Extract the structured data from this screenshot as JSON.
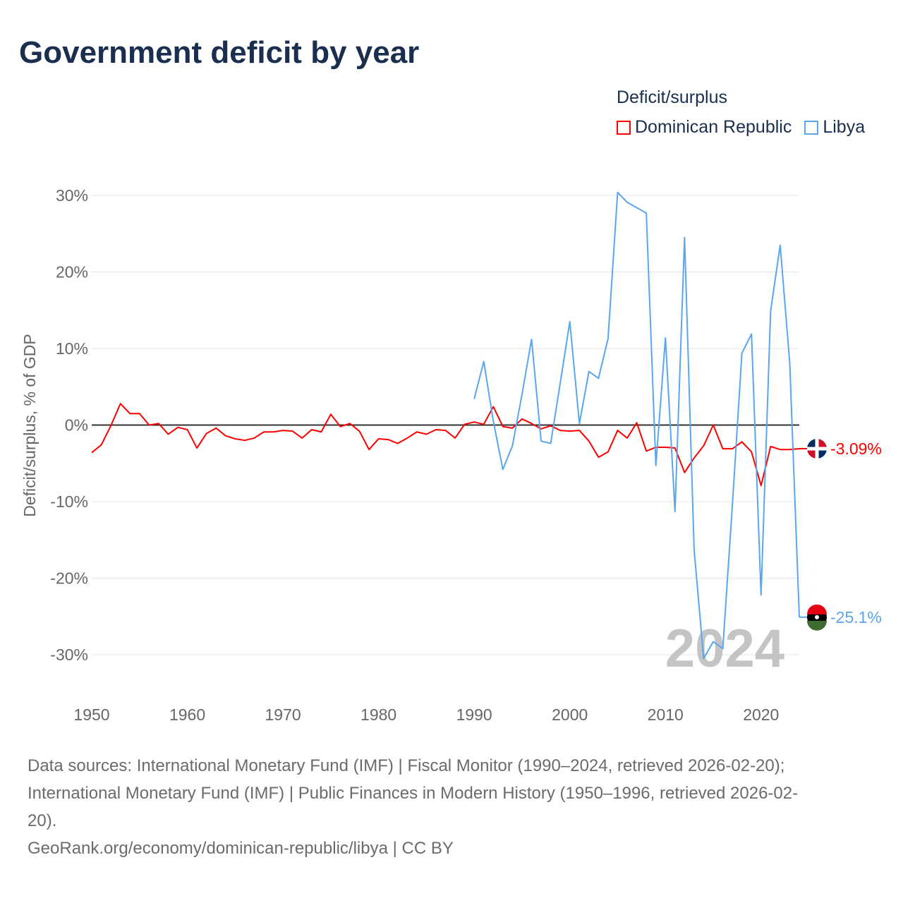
{
  "title": "Government deficit by year",
  "legend": {
    "title": "Deficit/surplus",
    "items": [
      {
        "name": "Dominican Republic",
        "color": "#ff0000"
      },
      {
        "name": "Libya",
        "color": "#5aa6ec"
      }
    ]
  },
  "year_label": "2024",
  "sources": {
    "line1": "Data sources: International Monetary Fund (IMF) | Fiscal Monitor (1990–2024, retrieved 2026-02-20);",
    "line2": "International Monetary Fund (IMF) | Public Finances in Modern History (1950–1996, retrieved 2026-02-",
    "line3": "20).",
    "line4": "GeoRank.org/economy/dominican-republic/libya | CC BY"
  },
  "chart_data": {
    "type": "line",
    "title": "Government deficit by year",
    "xlabel": "",
    "ylabel": "Deficit/surplus, % of GDP",
    "xlim": [
      1950,
      2024
    ],
    "ylim": [
      -30,
      30
    ],
    "xticks": [
      1950,
      1960,
      1970,
      1980,
      1990,
      2000,
      2010,
      2020
    ],
    "xtick_labels": [
      "1950",
      "1960",
      "1970",
      "1980",
      "1990",
      "2000",
      "2010",
      "2020"
    ],
    "yticks": [
      30,
      20,
      10,
      0,
      -10,
      -20,
      -30
    ],
    "ytick_labels": [
      "30%",
      "20%",
      "10%",
      "0%",
      "-10%",
      "-20%",
      "-30%"
    ],
    "grid": true,
    "legend_position": "top-right",
    "series": [
      {
        "name": "Dominican Republic",
        "color": "#ff0000",
        "start_year": 1950,
        "end_label": "-3.09%",
        "values": [
          -3.6,
          -2.6,
          -0.1,
          2.8,
          1.5,
          1.5,
          0.0,
          0.2,
          -1.2,
          -0.3,
          -0.6,
          -3.0,
          -1.1,
          -0.4,
          -1.4,
          -1.8,
          -2.0,
          -1.7,
          -0.9,
          -0.9,
          -0.7,
          -0.8,
          -1.7,
          -0.6,
          -0.9,
          1.4,
          -0.2,
          0.2,
          -0.8,
          -3.2,
          -1.8,
          -1.9,
          -2.4,
          -1.7,
          -0.9,
          -1.2,
          -0.6,
          -0.7,
          -1.7,
          0.1,
          0.4,
          0.1,
          2.4,
          -0.2,
          -0.4,
          0.8,
          0.2,
          -0.5,
          -0.1,
          -0.7,
          -0.8,
          -0.7,
          -2.1,
          -4.2,
          -3.5,
          -0.7,
          -1.7,
          0.3,
          -3.4,
          -2.9,
          -2.9,
          -3.0,
          -6.2,
          -4.3,
          -2.7,
          0.0,
          -3.1,
          -3.1,
          -2.2,
          -3.5,
          -7.9,
          -2.8,
          -3.2,
          -3.2,
          -3.09
        ]
      },
      {
        "name": "Libya",
        "color": "#5aa6ec",
        "start_year": 1990,
        "end_label": "-25.1%",
        "values": [
          3.4,
          8.3,
          0.5,
          -5.8,
          -2.7,
          4.0,
          11.2,
          -2.1,
          -2.4,
          5.5,
          13.5,
          0.2,
          7.0,
          6.1,
          11.3,
          30.4,
          29.1,
          28.4,
          27.7,
          -5.3,
          11.4,
          -11.3,
          24.5,
          -16.3,
          -30.5,
          -28.3,
          -29.2,
          -10.5,
          9.4,
          11.9,
          -22.2,
          14.9,
          23.5,
          8.1,
          -25.1
        ]
      }
    ]
  }
}
